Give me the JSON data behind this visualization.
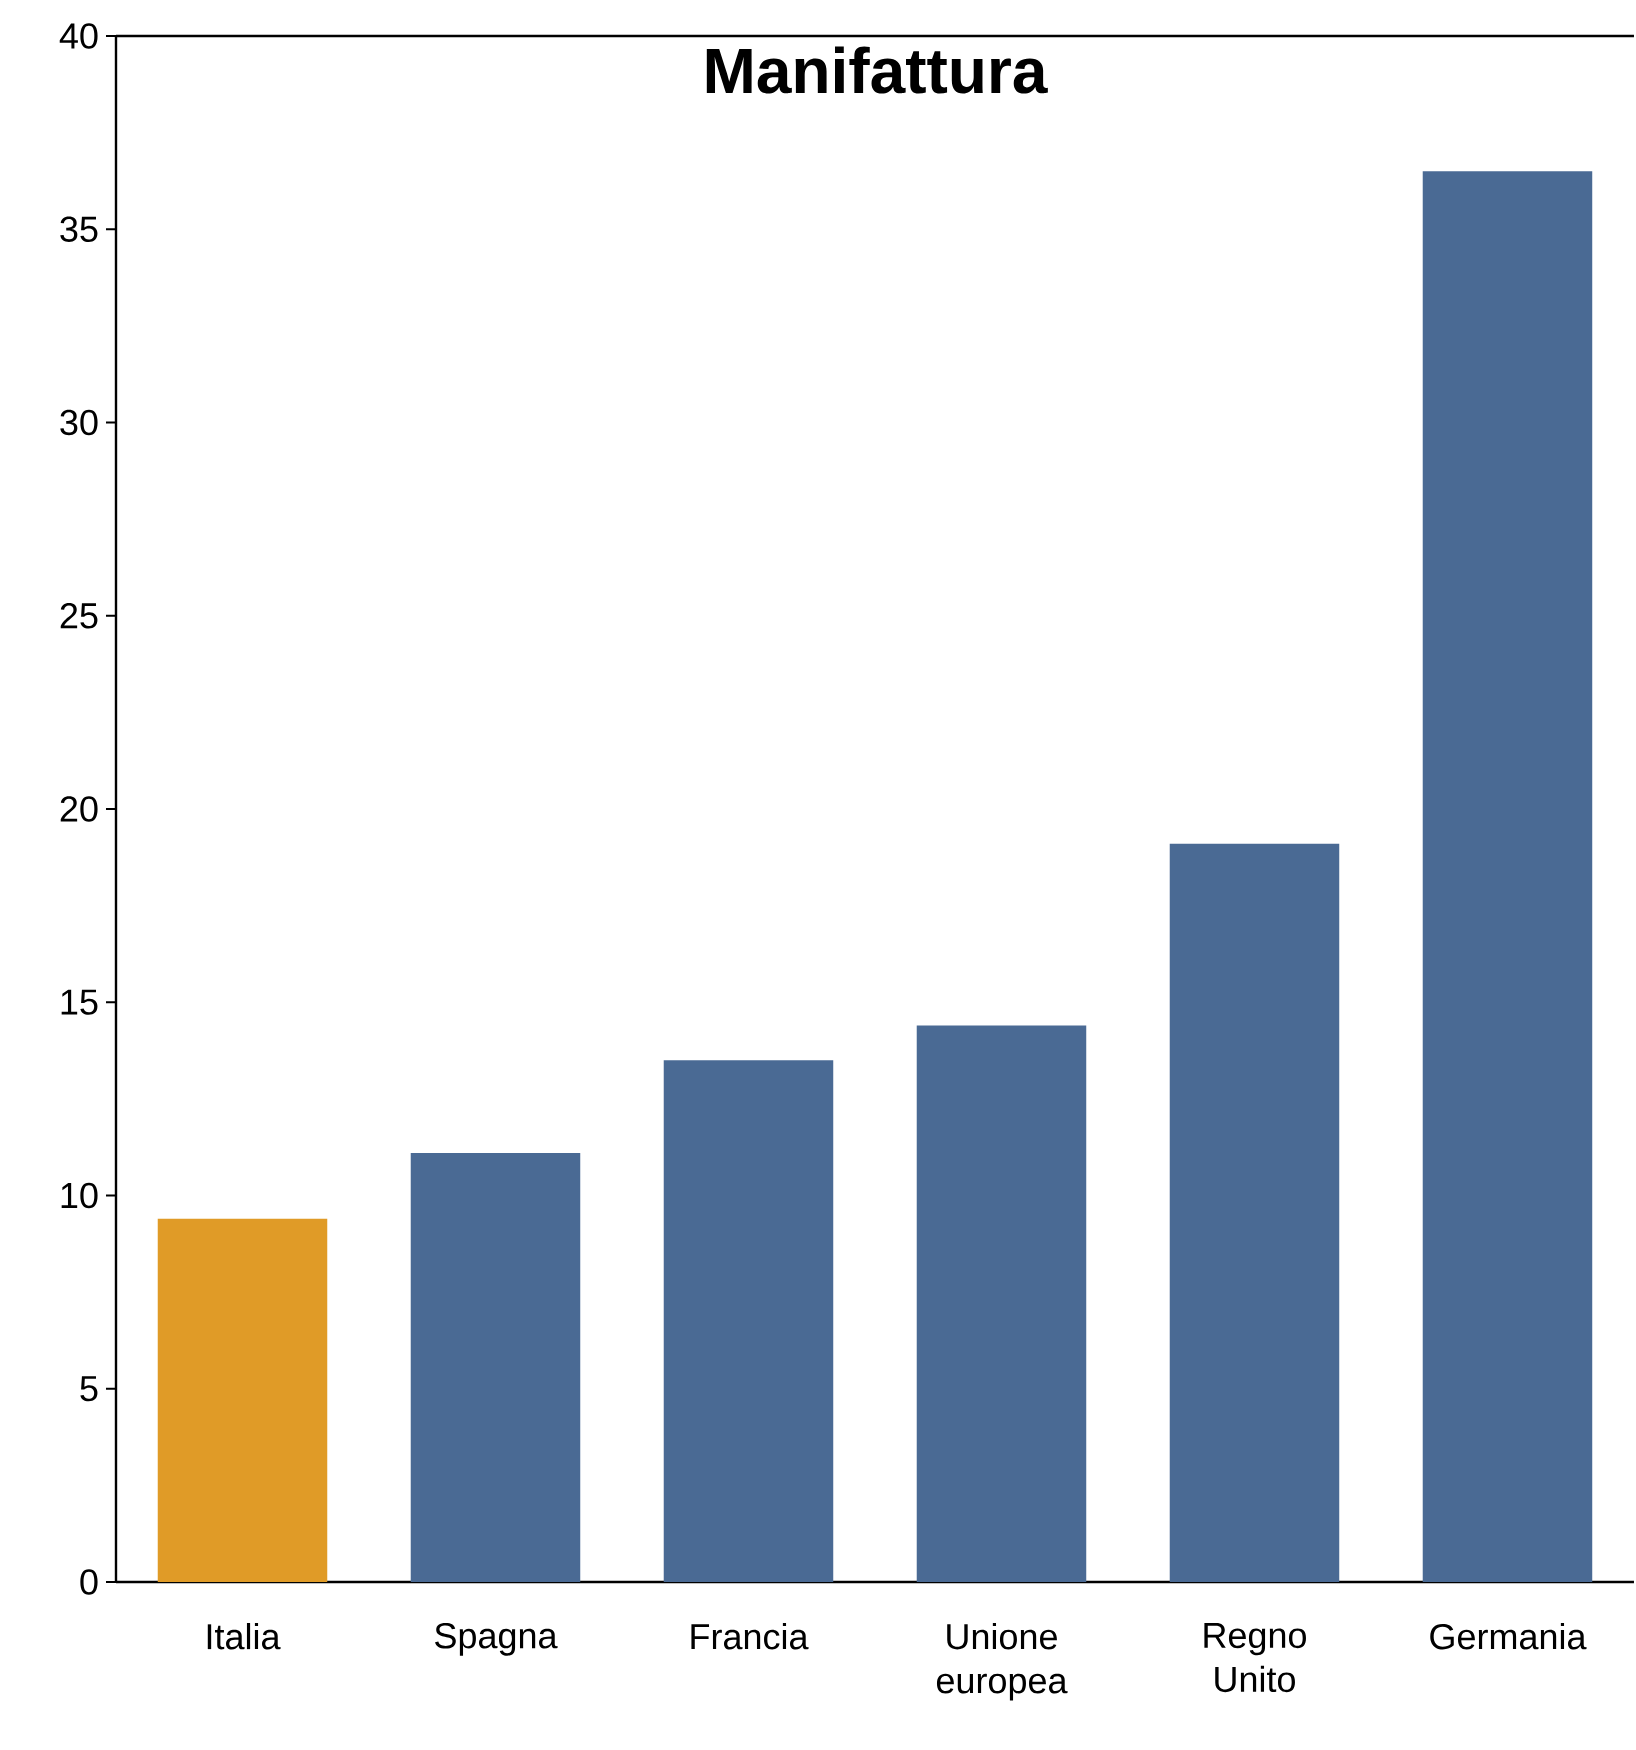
{
  "chart_data": {
    "type": "bar",
    "title": "Manifattura",
    "categories": [
      "Italia",
      "Spagna",
      "Francia",
      "Unione europea",
      "Regno Unito",
      "Germania"
    ],
    "values": [
      9.4,
      11.1,
      13.5,
      14.4,
      19.1,
      36.5
    ],
    "colors": [
      "#e09b27",
      "#4a6a94",
      "#4a6a94",
      "#4a6a94",
      "#4a6a94",
      "#4a6a94"
    ],
    "ylim": [
      0,
      40
    ],
    "yticks": [
      0,
      5,
      10,
      15,
      20,
      25,
      30,
      35,
      40
    ],
    "grid": false
  }
}
